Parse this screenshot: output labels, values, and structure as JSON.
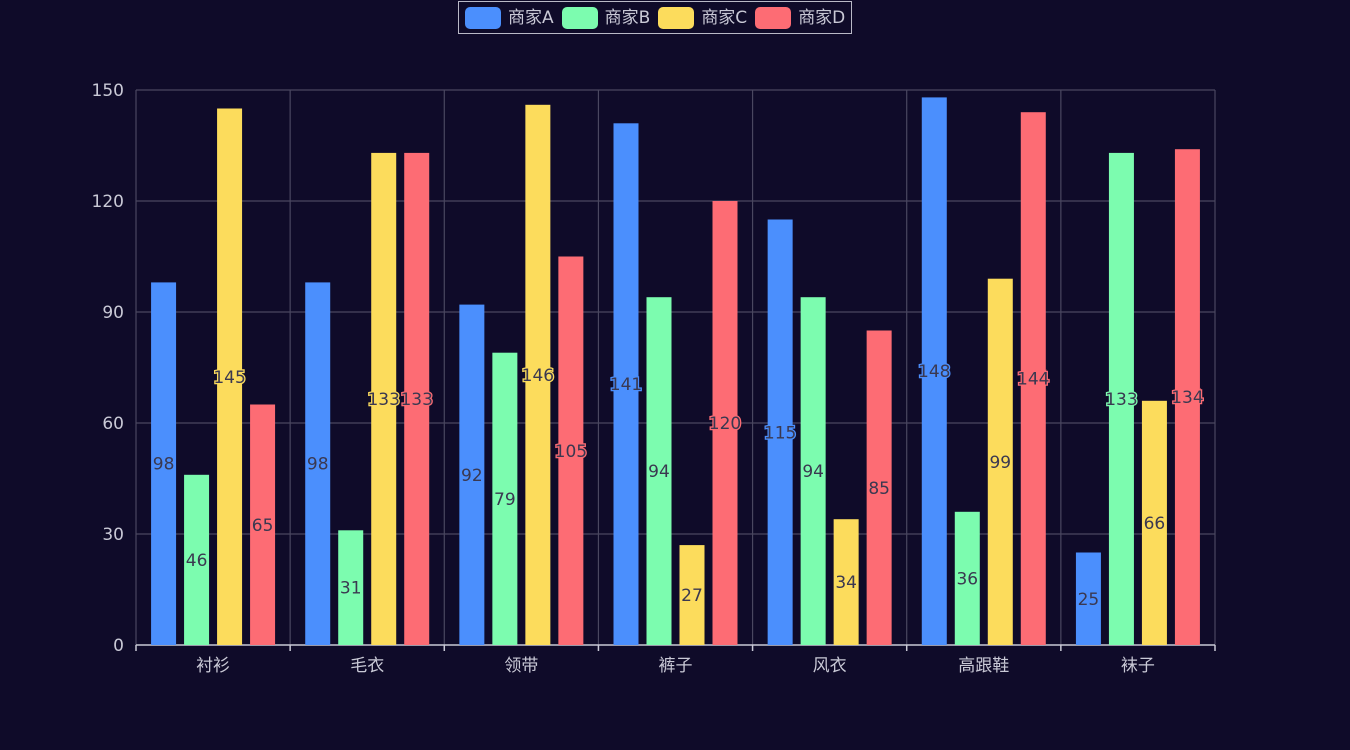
{
  "legend": {
    "items": [
      {
        "label": "商家A",
        "color": "#4b8ffd"
      },
      {
        "label": "商家B",
        "color": "#7cfcaf"
      },
      {
        "label": "商家C",
        "color": "#fcdc5c"
      },
      {
        "label": "商家D",
        "color": "#fd6c74"
      }
    ]
  },
  "chart_data": {
    "type": "bar",
    "title": "",
    "xlabel": "",
    "ylabel": "",
    "categories": [
      "衬衫",
      "毛衣",
      "领带",
      "裤子",
      "风衣",
      "高跟鞋",
      "袜子"
    ],
    "ylim": [
      0,
      150
    ],
    "yticks": [
      0,
      30,
      60,
      90,
      120,
      150
    ],
    "grid": true,
    "legend_position": "top-center",
    "data_labels": true,
    "series": [
      {
        "name": "商家A",
        "color": "#4b8ffd",
        "values": [
          98,
          98,
          92,
          141,
          115,
          148,
          25
        ]
      },
      {
        "name": "商家B",
        "color": "#7cfcaf",
        "values": [
          46,
          31,
          79,
          94,
          94,
          36,
          133
        ]
      },
      {
        "name": "商家C",
        "color": "#fcdc5c",
        "values": [
          145,
          133,
          146,
          27,
          34,
          99,
          66
        ]
      },
      {
        "name": "商家D",
        "color": "#fd6c74",
        "values": [
          65,
          133,
          105,
          120,
          85,
          144,
          134
        ]
      }
    ]
  }
}
